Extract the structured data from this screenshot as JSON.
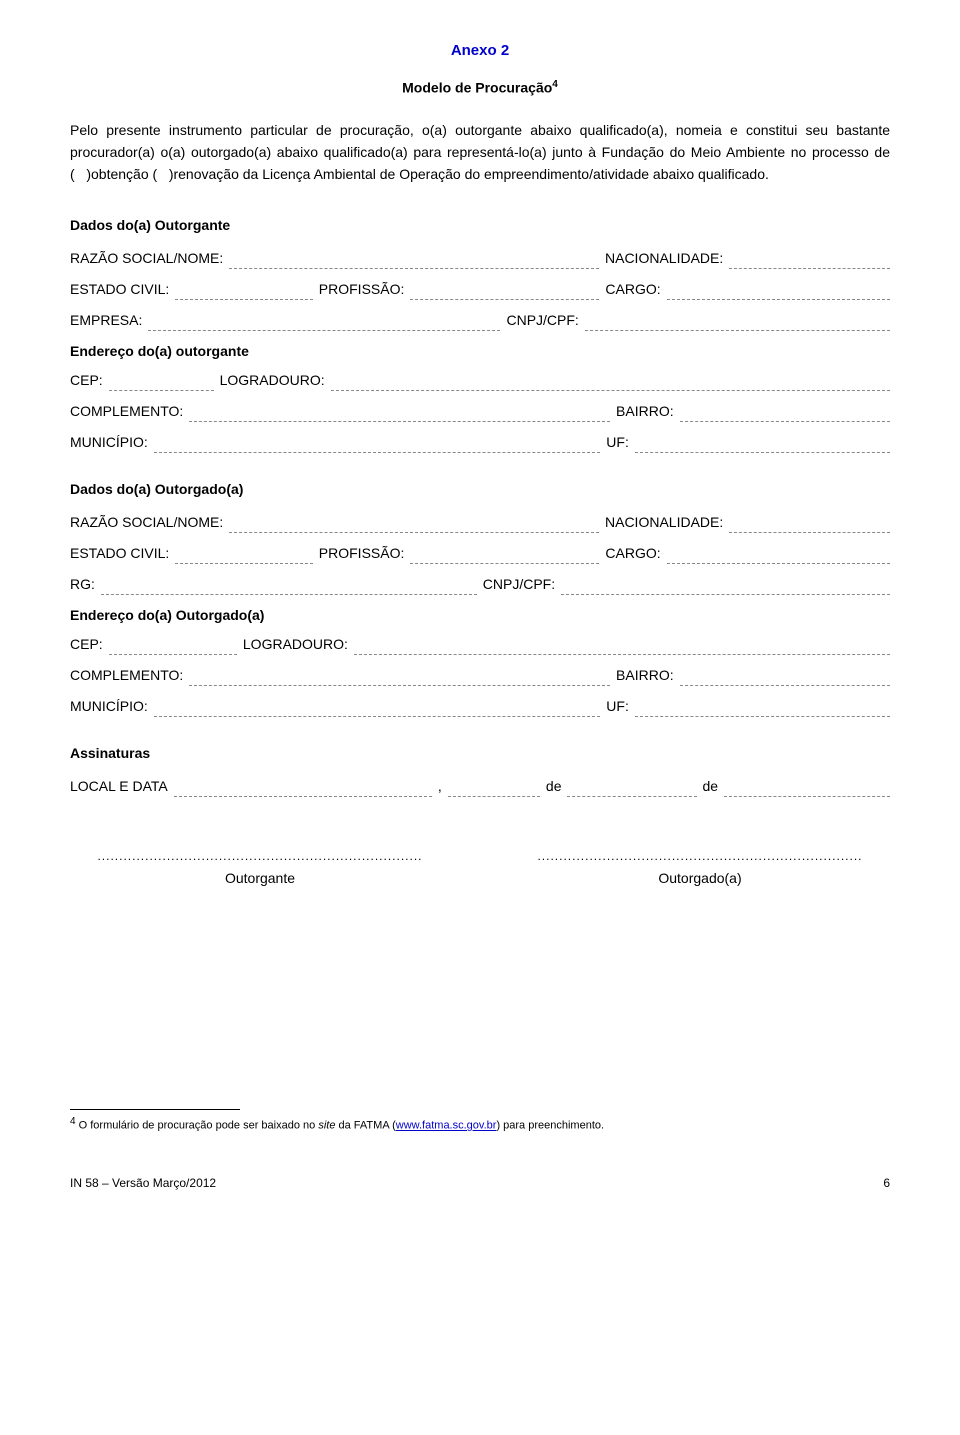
{
  "header": {
    "anexo": "Anexo 2",
    "modelo": "Modelo de Procuração",
    "modelo_sup": "4"
  },
  "paragraph": "Pelo presente instrumento particular de procuração, o(a) outorgante abaixo qualificado(a), nomeia e constitui seu bastante procurador(a) o(a) outorgado(a) abaixo qualificado(a) para representá-lo(a) junto à Fundação do Meio Ambiente no processo de (   )obtenção (   )renovação da Licença Ambiental de Operação do empreendimento/atividade abaixo qualificado.",
  "outorgante": {
    "title": "Dados do(a) Outorgante",
    "razao": "RAZÃO SOCIAL/NOME:",
    "nacionalidade": "NACIONALIDADE:",
    "estado_civil": "ESTADO CIVIL:",
    "profissao": "PROFISSÃO:",
    "cargo": "CARGO:",
    "empresa": "EMPRESA:",
    "cnpj": "CNPJ/CPF:",
    "endereco_title": "Endereço do(a) outorgante",
    "cep": "CEP:",
    "logradouro": "LOGRADOURO:",
    "complemento": "COMPLEMENTO:",
    "bairro": "BAIRRO:",
    "municipio": "MUNICÍPIO:",
    "uf": "UF:"
  },
  "outorgado": {
    "title": "Dados do(a) Outorgado(a)",
    "razao": "RAZÃO SOCIAL/NOME:",
    "nacionalidade": "NACIONALIDADE:",
    "estado_civil": "ESTADO CIVIL:",
    "profissao": "PROFISSÃO:",
    "cargo": "CARGO:",
    "rg": "RG:",
    "cnpj": "CNPJ/CPF:",
    "endereco_title": "Endereço do(a) Outorgado(a)",
    "cep": "CEP:",
    "logradouro": "LOGRADOURO:",
    "complemento": "COMPLEMENTO:",
    "bairro": "BAIRRO:",
    "municipio": "MUNICÍPIO:",
    "uf": "UF:"
  },
  "assinaturas": {
    "title": "Assinaturas",
    "local": "LOCAL E DATA",
    "comma": ",",
    "de1": "de",
    "de2": "de",
    "dots": "...........................................................................",
    "outorgante": "Outorgante",
    "outorgado": "Outorgado(a)"
  },
  "footnote": {
    "sup": "4",
    "text_before": " O formulário de procuração pode ser baixado no ",
    "site_word": "site",
    "text_mid": " da FATMA (",
    "link_text": "www.fatma.sc.gov.br",
    "text_after": ") para preenchimento."
  },
  "footer": {
    "version": "IN 58 – Versão Março/2012",
    "page": "6"
  }
}
